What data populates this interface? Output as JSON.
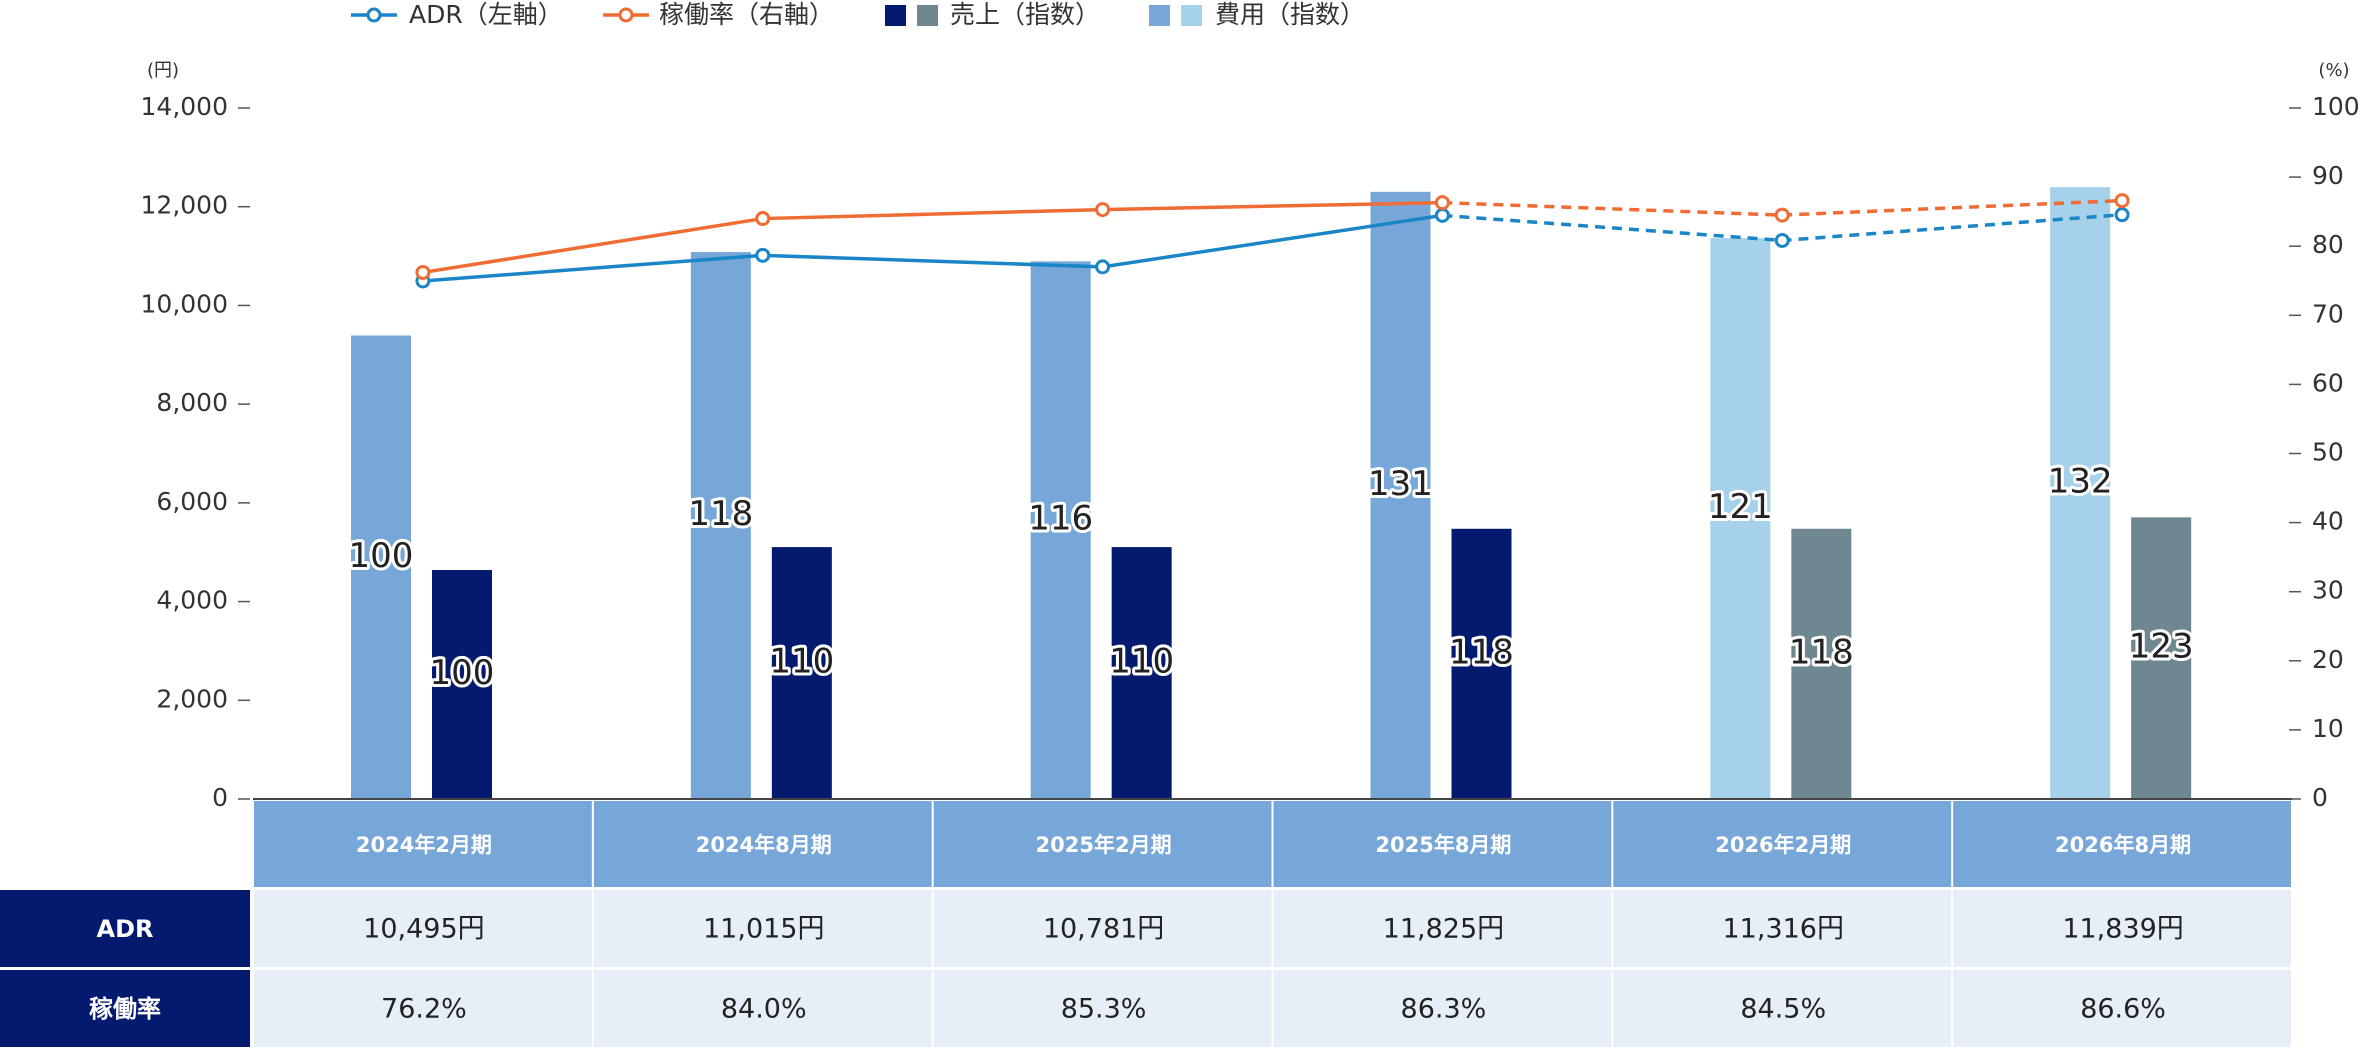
{
  "chart_data": {
    "type": "bar",
    "categories": [
      "2024年2月期",
      "2024年8月期",
      "2025年2月期",
      "2025年8月期",
      "2026年2月期",
      "2026年8月期"
    ],
    "ylabel": "(円)",
    "y2label": "(%)",
    "ylim": [
      0,
      14000
    ],
    "yticks": [
      0,
      {
        "value": 2000,
        "label": "2,000"
      },
      {
        "value": 4000,
        "label": "4,000"
      },
      {
        "value": 6000,
        "label": "6,000"
      },
      {
        "value": 8000,
        "label": "8,000"
      },
      {
        "value": 10000,
        "label": "10,000"
      },
      {
        "value": 12000,
        "label": "12,000"
      },
      {
        "value": 14000,
        "label": "14,000"
      }
    ],
    "y2lim": [
      0,
      100
    ],
    "y2ticks": [
      0,
      10,
      20,
      30,
      40,
      50,
      60,
      70,
      80,
      90,
      100
    ],
    "series": [
      {
        "name": "ADR（左軸）",
        "type": "line",
        "axis": "y",
        "color": "#1a86c7",
        "styles": [
          "solid",
          "solid",
          "solid",
          "solid",
          "dashed",
          "dashed"
        ],
        "values": [
          10495,
          11015,
          10781,
          11825,
          11316,
          11839
        ],
        "value_labels": [
          "10,495円",
          "11,015円",
          "10,781円",
          "11,825円",
          "11,316円",
          "11,839円"
        ]
      },
      {
        "name": "稼働率（右軸）",
        "type": "line",
        "axis": "y2",
        "color": "#ef6c35",
        "styles": [
          "solid",
          "solid",
          "solid",
          "solid",
          "dashed",
          "dashed"
        ],
        "values": [
          76.2,
          84.0,
          85.3,
          86.3,
          84.5,
          86.6
        ],
        "value_labels": [
          "76.2%",
          "84.0%",
          "85.3%",
          "86.3%",
          "84.5%",
          "86.6%"
        ]
      },
      {
        "name": "売上（指数）",
        "type": "bar",
        "colors": [
          "#041a6f",
          "#041a6f",
          "#041a6f",
          "#041a6f",
          "#6e8791",
          "#6e8791"
        ],
        "values": [
          100,
          110,
          110,
          118,
          118,
          123
        ]
      },
      {
        "name": "費用（指数）",
        "type": "bar",
        "colors": [
          "#77a7d8",
          "#77a7d8",
          "#77a7d8",
          "#77a7d8",
          "#a5d1ea",
          "#a5d1ea"
        ],
        "values": [
          100,
          118,
          116,
          131,
          121,
          132
        ]
      }
    ],
    "table_rows": [
      "ADR",
      "稼働率"
    ]
  }
}
